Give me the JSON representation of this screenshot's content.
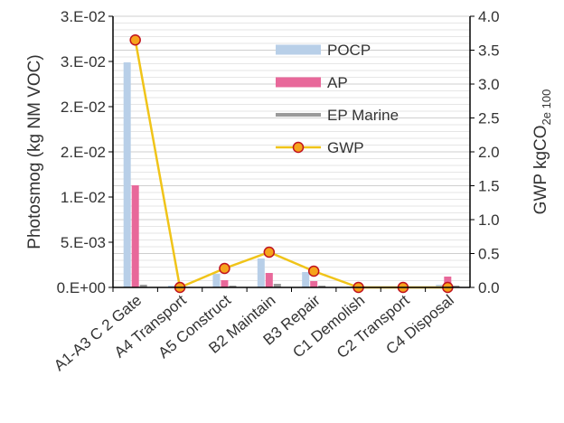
{
  "chart_data": {
    "type": "bar",
    "categories": [
      "A1-A3 C 2 Gate",
      "A4 Transport",
      "A5 Construct",
      "B2 Maintain",
      "B3 Repair",
      "C1 Demolish",
      "C2 Transport",
      "C4 Disposal"
    ],
    "series": [
      {
        "name": "POCP",
        "type": "bar",
        "axis": "left",
        "color": "#b8cfe8",
        "values": [
          0.0249,
          0.0002,
          0.0015,
          0.0032,
          0.0017,
          0.0001,
          0.0001,
          0.0003
        ]
      },
      {
        "name": "AP",
        "type": "bar",
        "axis": "left",
        "color": "#e8689a",
        "values": [
          0.0113,
          0.0001,
          0.0008,
          0.0016,
          0.0007,
          0.0001,
          0.0001,
          0.0012
        ]
      },
      {
        "name": "EP Marine",
        "type": "bar",
        "axis": "left",
        "color": "#9a9a9a",
        "values": [
          0.0003,
          5e-05,
          0.0002,
          0.0004,
          0.0002,
          5e-05,
          5e-05,
          0.0002
        ]
      },
      {
        "name": "GWP",
        "type": "line",
        "axis": "right",
        "color": "#f0c419",
        "marker_fill": "#f6a31c",
        "marker_edge": "#c0121e",
        "values": [
          3.65,
          0.0,
          0.28,
          0.52,
          0.24,
          0.0,
          0.0,
          0.0
        ]
      }
    ],
    "left_axis": {
      "label": "Photosmog (kg NM VOC)",
      "ticks": [
        0,
        0.005,
        0.01,
        0.015,
        0.02,
        0.025,
        0.03
      ],
      "tick_labels": [
        "0.E+00",
        "5.E-03",
        "1.E-02",
        "2.E-02",
        "2.E-02",
        "3.E-02",
        "3.E-02"
      ],
      "ylim": [
        0,
        0.03
      ]
    },
    "right_axis": {
      "label_main": "GWP kgCO",
      "label_sub": "2e 100",
      "ticks": [
        0,
        0.5,
        1.0,
        1.5,
        2.0,
        2.5,
        3.0,
        3.5,
        4.0
      ],
      "tick_labels": [
        "0.0",
        "0.5",
        "1.0",
        "1.5",
        "2.0",
        "2.5",
        "3.0",
        "3.5",
        "4.0"
      ],
      "ylim": [
        0,
        4.0
      ]
    },
    "grid": true,
    "legend_position": "top-right inside plot"
  }
}
